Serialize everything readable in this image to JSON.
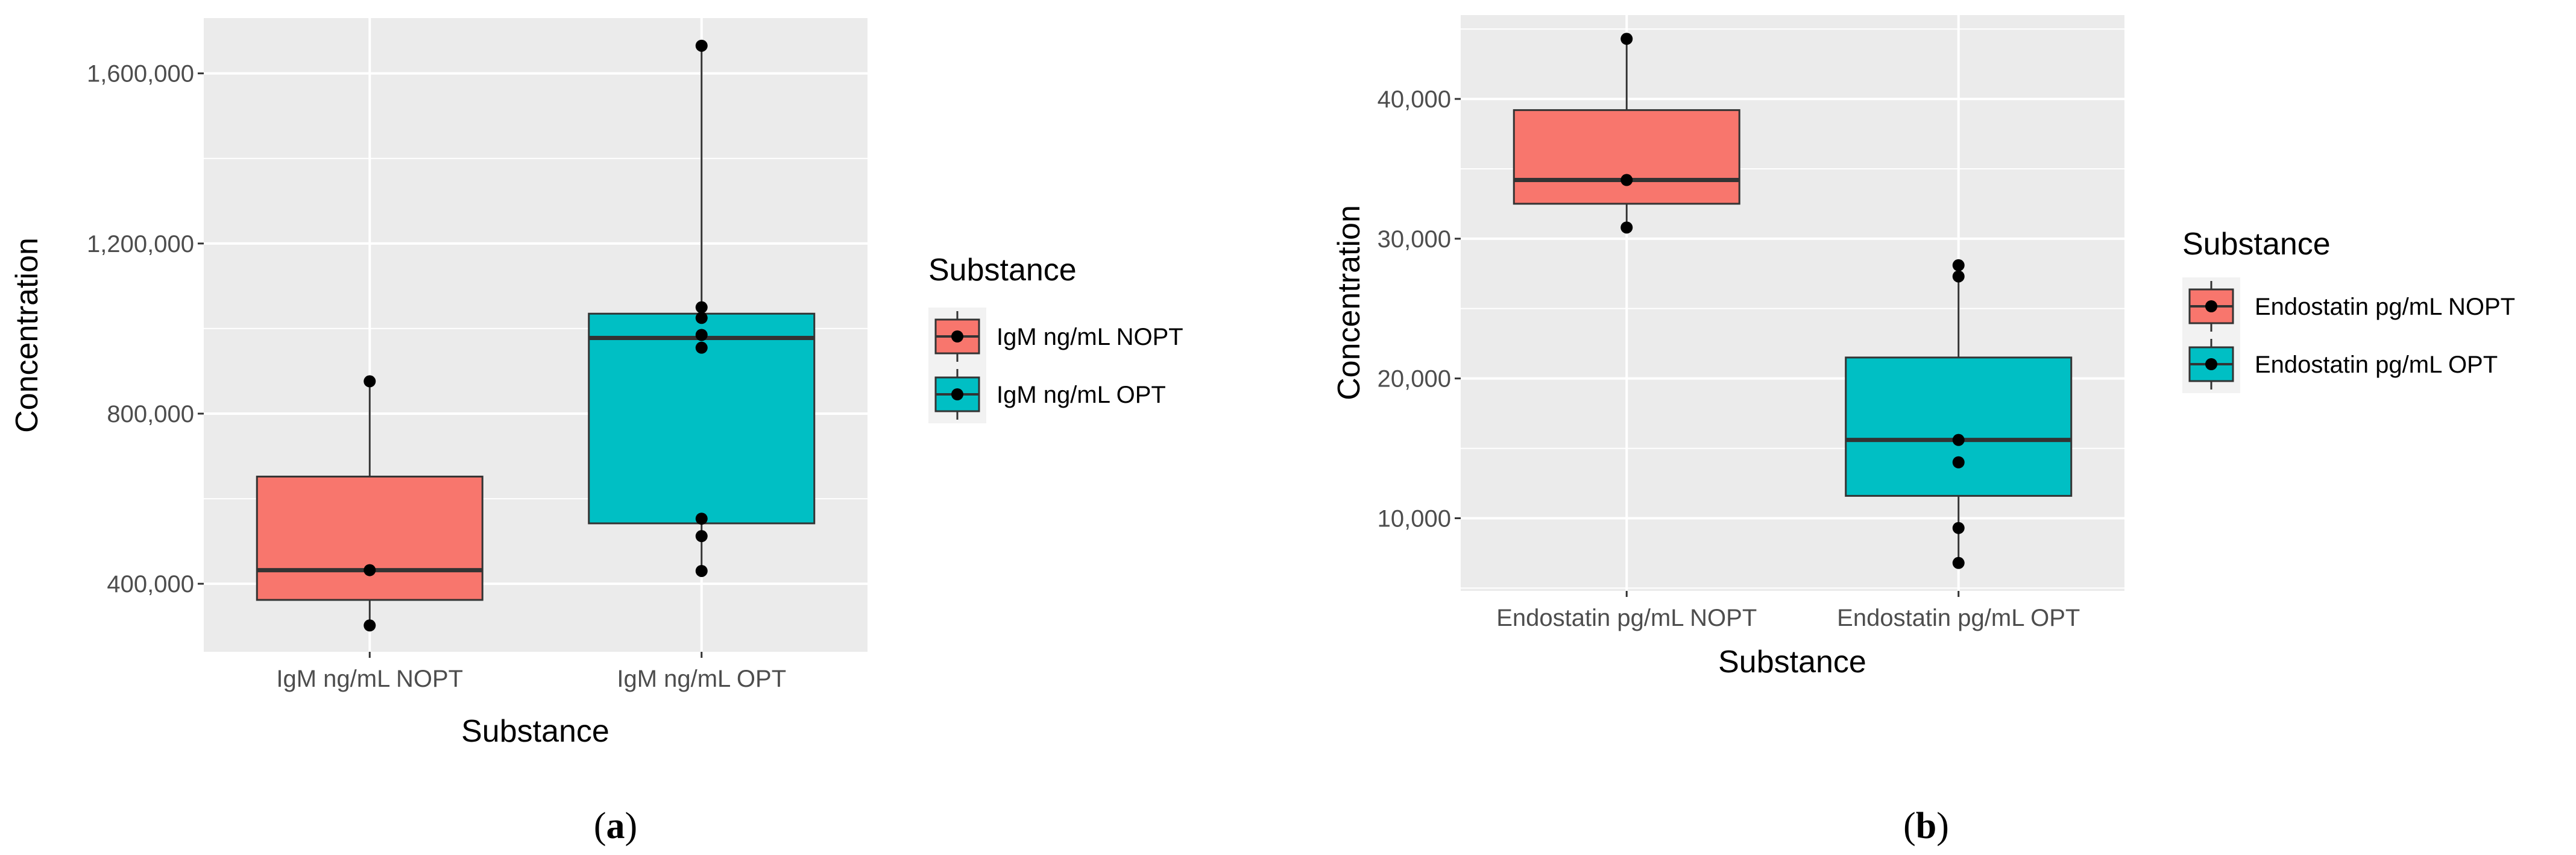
{
  "chart_data": [
    {
      "type": "boxplot",
      "panel_label": "a",
      "xlabel": "Substance",
      "ylabel": "Concentration",
      "categories": [
        "IgM ng/mL NOPT",
        "IgM ng/mL OPT"
      ],
      "ylim": [
        240000,
        1730000
      ],
      "yticks": [
        400000,
        800000,
        1200000,
        1600000
      ],
      "ytick_labels": [
        "400,000",
        "800,000",
        "1,200,000",
        "1,600,000"
      ],
      "grid": true,
      "legend": {
        "title": "Substance",
        "position": "right",
        "entries": [
          {
            "label": "IgM ng/mL NOPT",
            "color": "#F8766D"
          },
          {
            "label": "IgM ng/mL OPT",
            "color": "#00BFC4"
          }
        ]
      },
      "series": [
        {
          "category": "IgM ng/mL NOPT",
          "color": "#F8766D",
          "box": {
            "lower_whisker": 302000,
            "q1": 362000,
            "median": 432000,
            "q3": 652000,
            "upper_whisker": 876000
          },
          "points": [
            876000,
            432000,
            302000
          ]
        },
        {
          "category": "IgM ng/mL OPT",
          "color": "#00BFC4",
          "box": {
            "lower_whisker": 430000,
            "q1": 542000,
            "median": 978000,
            "q3": 1035000,
            "upper_whisker": 1665000
          },
          "points": [
            1665000,
            1050000,
            1025000,
            985000,
            955000,
            553000,
            512000,
            430000
          ]
        }
      ]
    },
    {
      "type": "boxplot",
      "panel_label": "b",
      "xlabel": "Substance",
      "ylabel": "Concentration",
      "categories": [
        "Endostatin pg/mL NOPT",
        "Endostatin pg/mL OPT"
      ],
      "ylim": [
        4800,
        46000
      ],
      "yticks": [
        10000,
        20000,
        30000,
        40000
      ],
      "ytick_labels": [
        "10,000",
        "20,000",
        "30,000",
        "40,000"
      ],
      "grid": true,
      "legend": {
        "title": "Substance",
        "position": "right",
        "entries": [
          {
            "label": "Endostatin pg/mL NOPT",
            "color": "#F8766D"
          },
          {
            "label": "Endostatin pg/mL OPT",
            "color": "#00BFC4"
          }
        ]
      },
      "series": [
        {
          "category": "Endostatin pg/mL NOPT",
          "color": "#F8766D",
          "box": {
            "lower_whisker": 30800,
            "q1": 32500,
            "median": 34200,
            "q3": 39200,
            "upper_whisker": 44300
          },
          "points": [
            44300,
            34200,
            30800
          ]
        },
        {
          "category": "Endostatin pg/mL OPT",
          "color": "#00BFC4",
          "box": {
            "lower_whisker": 6800,
            "q1": 11600,
            "median": 15600,
            "q3": 21500,
            "upper_whisker": 28100
          },
          "points": [
            28100,
            27300,
            15600,
            14000,
            9300,
            6800
          ]
        }
      ]
    }
  ]
}
